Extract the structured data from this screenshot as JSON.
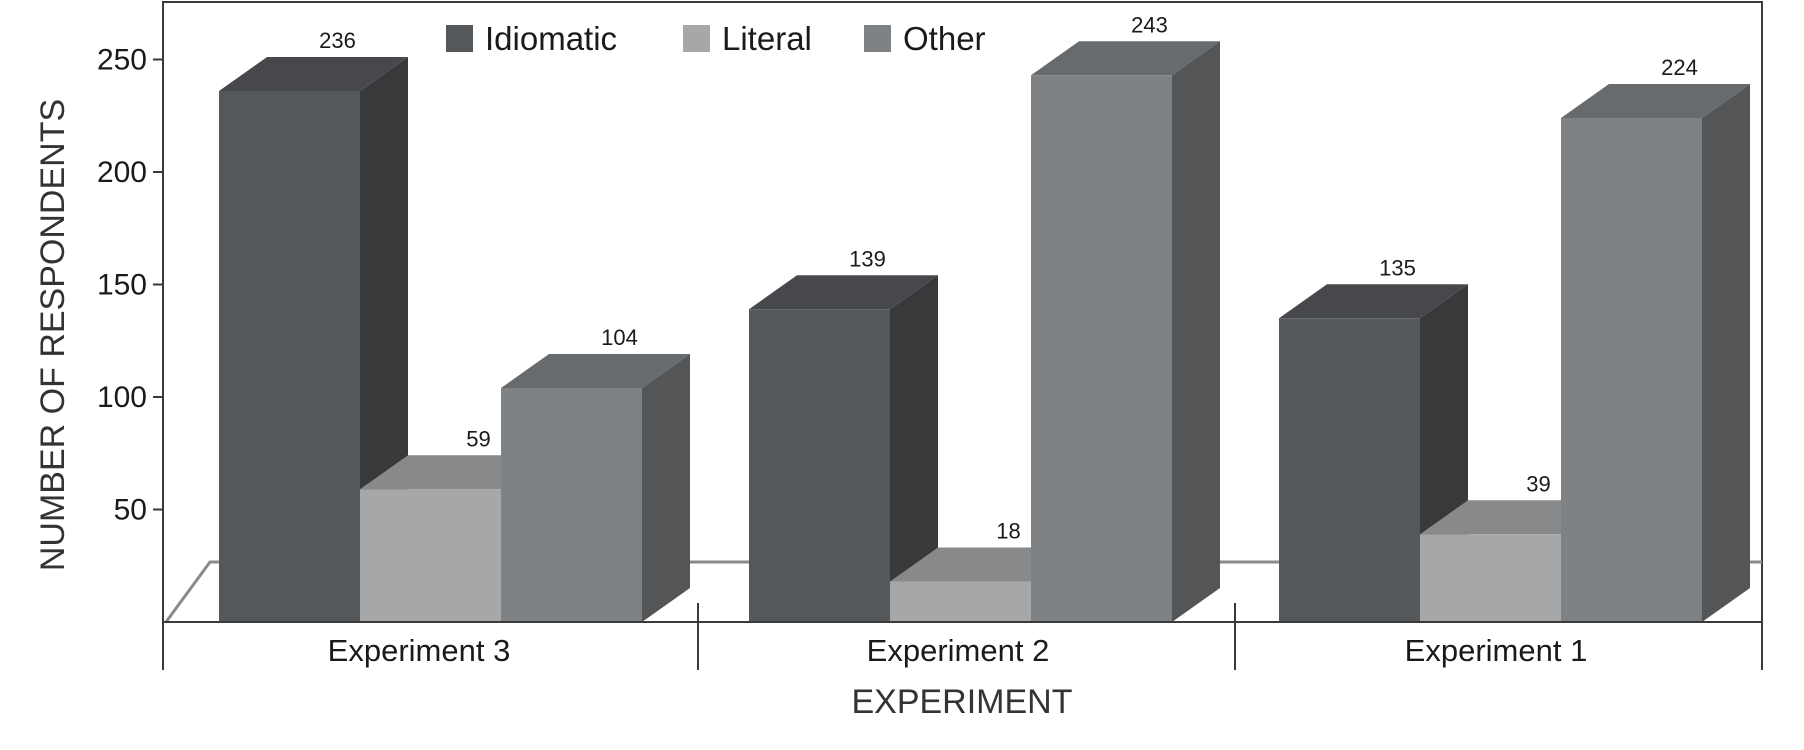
{
  "chart_data": {
    "type": "bar",
    "style": "3d-clustered",
    "categories": [
      "Experiment 3",
      "Experiment 2",
      "Experiment 1"
    ],
    "series": [
      {
        "name": "Idiomatic",
        "values": [
          236,
          139,
          135
        ],
        "color": "#55585b"
      },
      {
        "name": "Literal",
        "values": [
          59,
          18,
          39
        ],
        "color": "#a5a7a8"
      },
      {
        "name": "Other",
        "values": [
          104,
          243,
          224
        ],
        "color": "#7f8285"
      }
    ],
    "xlabel": "EXPERIMENT",
    "ylabel": "NUMBER OF RESPONDENTS",
    "ylim": [
      0,
      250
    ],
    "yticks": [
      50,
      100,
      150,
      200,
      250
    ],
    "grid": false,
    "legend_position": "top"
  }
}
